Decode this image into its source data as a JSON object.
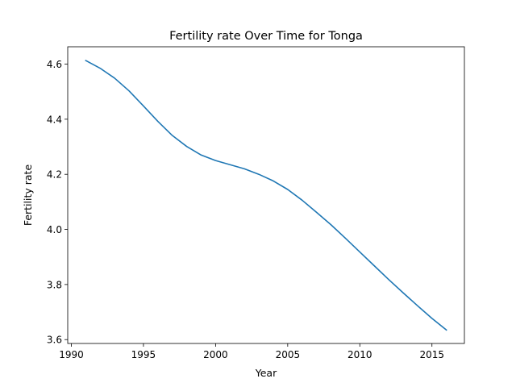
{
  "chart_data": {
    "type": "line",
    "title": "Fertility rate Over Time for Tonga",
    "xlabel": "Year",
    "ylabel": "Fertility rate",
    "xlim": [
      1989.75,
      2017.25
    ],
    "ylim": [
      3.586,
      4.663
    ],
    "x_ticks": [
      1990,
      1995,
      2000,
      2005,
      2010,
      2015
    ],
    "y_ticks": [
      3.6,
      3.8,
      4.0,
      4.2,
      4.4,
      4.6
    ],
    "y_tick_labels": [
      "3.6",
      "3.8",
      "4.0",
      "4.2",
      "4.4",
      "4.6"
    ],
    "grid": false,
    "series": [
      {
        "color": "#1f77b4",
        "x": [
          1991,
          1992,
          1993,
          1994,
          1995,
          1996,
          1997,
          1998,
          1999,
          2000,
          2001,
          2002,
          2003,
          2004,
          2005,
          2006,
          2007,
          2008,
          2009,
          2010,
          2011,
          2012,
          2013,
          2014,
          2015,
          2016
        ],
        "y": [
          4.613,
          4.585,
          4.549,
          4.503,
          4.448,
          4.392,
          4.341,
          4.301,
          4.27,
          4.25,
          4.235,
          4.22,
          4.2,
          4.176,
          4.145,
          4.106,
          4.062,
          4.017,
          3.968,
          3.918,
          3.868,
          3.818,
          3.77,
          3.723,
          3.677,
          3.635
        ]
      }
    ]
  }
}
